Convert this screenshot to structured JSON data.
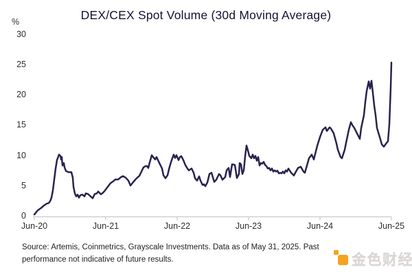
{
  "chart_data": {
    "type": "line",
    "title": "DEX/CEX Spot Volume (30d Moving Average)",
    "unit_label": "%",
    "ylabel": "",
    "xlabel": "",
    "ylim": [
      0,
      30
    ],
    "yticks": [
      0,
      5,
      10,
      15,
      20,
      25,
      30
    ],
    "xtick_labels": [
      "Jun-20",
      "Jun-21",
      "Jun-22",
      "Jun-23",
      "Jun-24",
      "Jun-25"
    ],
    "x_unit": "years since Jun-2020",
    "grid": "off",
    "legend": "none",
    "line_color": "#29224e",
    "axis_color": "#c9c9c9",
    "series_name": "DEX/CEX spot volume ratio (%), 30d moving average",
    "points": [
      [
        0.0,
        0.2
      ],
      [
        0.048,
        0.9
      ],
      [
        0.096,
        1.3
      ],
      [
        0.135,
        1.7
      ],
      [
        0.173,
        2.0
      ],
      [
        0.202,
        2.1
      ],
      [
        0.221,
        2.4
      ],
      [
        0.24,
        3.0
      ],
      [
        0.26,
        4.2
      ],
      [
        0.279,
        6.0
      ],
      [
        0.298,
        7.8
      ],
      [
        0.317,
        9.2
      ],
      [
        0.346,
        10.1
      ],
      [
        0.365,
        9.9
      ],
      [
        0.375,
        9.3
      ],
      [
        0.385,
        9.7
      ],
      [
        0.394,
        8.3
      ],
      [
        0.413,
        8.7
      ],
      [
        0.423,
        8.0
      ],
      [
        0.442,
        7.4
      ],
      [
        0.481,
        7.2
      ],
      [
        0.519,
        7.2
      ],
      [
        0.538,
        6.3
      ],
      [
        0.548,
        4.8
      ],
      [
        0.567,
        3.7
      ],
      [
        0.587,
        3.2
      ],
      [
        0.606,
        3.5
      ],
      [
        0.625,
        3.0
      ],
      [
        0.644,
        3.4
      ],
      [
        0.673,
        3.5
      ],
      [
        0.702,
        3.2
      ],
      [
        0.721,
        3.7
      ],
      [
        0.75,
        3.6
      ],
      [
        0.779,
        3.3
      ],
      [
        0.817,
        2.9
      ],
      [
        0.846,
        3.6
      ],
      [
        0.875,
        3.7
      ],
      [
        0.894,
        4.0
      ],
      [
        0.933,
        3.55
      ],
      [
        0.962,
        3.8
      ],
      [
        0.99,
        4.2
      ],
      [
        1.029,
        4.8
      ],
      [
        1.067,
        5.4
      ],
      [
        1.106,
        5.7
      ],
      [
        1.135,
        6.0
      ],
      [
        1.173,
        6.0
      ],
      [
        1.221,
        6.45
      ],
      [
        1.24,
        6.55
      ],
      [
        1.279,
        6.3
      ],
      [
        1.317,
        5.8
      ],
      [
        1.346,
        5.0
      ],
      [
        1.394,
        5.7
      ],
      [
        1.433,
        6.2
      ],
      [
        1.471,
        6.6
      ],
      [
        1.5,
        7.3
      ],
      [
        1.529,
        8.0
      ],
      [
        1.558,
        8.2
      ],
      [
        1.577,
        8.2
      ],
      [
        1.596,
        7.9
      ],
      [
        1.615,
        8.8
      ],
      [
        1.644,
        10.0
      ],
      [
        1.663,
        9.7
      ],
      [
        1.692,
        9.3
      ],
      [
        1.712,
        9.7
      ],
      [
        1.731,
        9.2
      ],
      [
        1.76,
        8.5
      ],
      [
        1.788,
        7.8
      ],
      [
        1.808,
        6.7
      ],
      [
        1.837,
        6.2
      ],
      [
        1.865,
        6.7
      ],
      [
        1.894,
        8.1
      ],
      [
        1.923,
        9.2
      ],
      [
        1.952,
        10.1
      ],
      [
        1.971,
        9.55
      ],
      [
        1.99,
        10.0
      ],
      [
        2.019,
        9.2
      ],
      [
        2.038,
        9.7
      ],
      [
        2.058,
        9.85
      ],
      [
        2.087,
        9.2
      ],
      [
        2.115,
        8.35
      ],
      [
        2.144,
        7.8
      ],
      [
        2.163,
        7.5
      ],
      [
        2.202,
        7.8
      ],
      [
        2.231,
        7.1
      ],
      [
        2.25,
        6.2
      ],
      [
        2.279,
        5.8
      ],
      [
        2.308,
        6.5
      ],
      [
        2.327,
        5.8
      ],
      [
        2.356,
        5.1
      ],
      [
        2.375,
        5.2
      ],
      [
        2.394,
        4.9
      ],
      [
        2.423,
        5.5
      ],
      [
        2.452,
        6.9
      ],
      [
        2.481,
        7.1
      ],
      [
        2.519,
        5.6
      ],
      [
        2.548,
        5.95
      ],
      [
        2.587,
        6.9
      ],
      [
        2.606,
        6.7
      ],
      [
        2.635,
        5.95
      ],
      [
        2.673,
        6.4
      ],
      [
        2.692,
        7.5
      ],
      [
        2.721,
        7.9
      ],
      [
        2.74,
        6.4
      ],
      [
        2.769,
        8.5
      ],
      [
        2.808,
        8.4
      ],
      [
        2.837,
        6.25
      ],
      [
        2.865,
        6.9
      ],
      [
        2.875,
        8.7
      ],
      [
        2.894,
        8.5
      ],
      [
        2.913,
        6.9
      ],
      [
        2.933,
        7.5
      ],
      [
        2.952,
        9.8
      ],
      [
        2.971,
        11.6
      ],
      [
        2.99,
        10.8
      ],
      [
        3.01,
        9.9
      ],
      [
        3.038,
        9.5
      ],
      [
        3.058,
        10.1
      ],
      [
        3.077,
        9.5
      ],
      [
        3.096,
        9.9
      ],
      [
        3.115,
        9.1
      ],
      [
        3.135,
        9.7
      ],
      [
        3.154,
        8.3
      ],
      [
        3.173,
        8.7
      ],
      [
        3.192,
        8.6
      ],
      [
        3.212,
        8.9
      ],
      [
        3.231,
        8.4
      ],
      [
        3.25,
        8.2
      ],
      [
        3.269,
        7.8
      ],
      [
        3.288,
        7.9
      ],
      [
        3.308,
        7.5
      ],
      [
        3.327,
        7.8
      ],
      [
        3.346,
        7.3
      ],
      [
        3.365,
        7.5
      ],
      [
        3.385,
        7.3
      ],
      [
        3.404,
        7.45
      ],
      [
        3.423,
        7.0
      ],
      [
        3.442,
        7.1
      ],
      [
        3.462,
        7.0
      ],
      [
        3.481,
        7.3
      ],
      [
        3.5,
        7.0
      ],
      [
        3.519,
        7.5
      ],
      [
        3.538,
        7.3
      ],
      [
        3.558,
        7.8
      ],
      [
        3.596,
        7.1
      ],
      [
        3.635,
        6.65
      ],
      [
        3.663,
        7.3
      ],
      [
        3.692,
        7.9
      ],
      [
        3.731,
        8.1
      ],
      [
        3.769,
        7.3
      ],
      [
        3.788,
        7.1
      ],
      [
        3.817,
        8.3
      ],
      [
        3.846,
        9.5
      ],
      [
        3.885,
        10.1
      ],
      [
        3.913,
        9.3
      ],
      [
        3.962,
        11.55
      ],
      [
        4.0,
        13.0
      ],
      [
        4.019,
        13.6
      ],
      [
        4.038,
        14.2
      ],
      [
        4.077,
        14.6
      ],
      [
        4.096,
        14.0
      ],
      [
        4.135,
        14.6
      ],
      [
        4.154,
        14.4
      ],
      [
        4.192,
        13.6
      ],
      [
        4.231,
        11.95
      ],
      [
        4.25,
        10.9
      ],
      [
        4.288,
        9.7
      ],
      [
        4.308,
        9.5
      ],
      [
        4.346,
        10.9
      ],
      [
        4.375,
        12.6
      ],
      [
        4.404,
        14.2
      ],
      [
        4.433,
        15.45
      ],
      [
        4.452,
        15.0
      ],
      [
        4.481,
        14.5
      ],
      [
        4.519,
        13.6
      ],
      [
        4.558,
        12.7
      ],
      [
        4.577,
        14.5
      ],
      [
        4.615,
        16.6
      ],
      [
        4.635,
        18.8
      ],
      [
        4.654,
        20.6
      ],
      [
        4.683,
        22.2
      ],
      [
        4.702,
        21.0
      ],
      [
        4.721,
        22.3
      ],
      [
        4.74,
        20.3
      ],
      [
        4.76,
        18.2
      ],
      [
        4.779,
        16.6
      ],
      [
        4.798,
        14.5
      ],
      [
        4.837,
        13.0
      ],
      [
        4.865,
        11.8
      ],
      [
        4.894,
        11.4
      ],
      [
        4.933,
        12.05
      ],
      [
        4.952,
        12.3
      ],
      [
        4.971,
        15.1
      ],
      [
        4.981,
        18.2
      ],
      [
        4.99,
        21.2
      ],
      [
        5.0,
        25.3
      ]
    ]
  },
  "footer": {
    "source_line1": "Source: Artemis, Coinmetrics, Grayscale Investments. Data as of May 31, 2025. Past",
    "source_line2": "performance not indicative of future results."
  },
  "watermark": {
    "text": "金色财经",
    "icon_color": "#f6a21e"
  }
}
